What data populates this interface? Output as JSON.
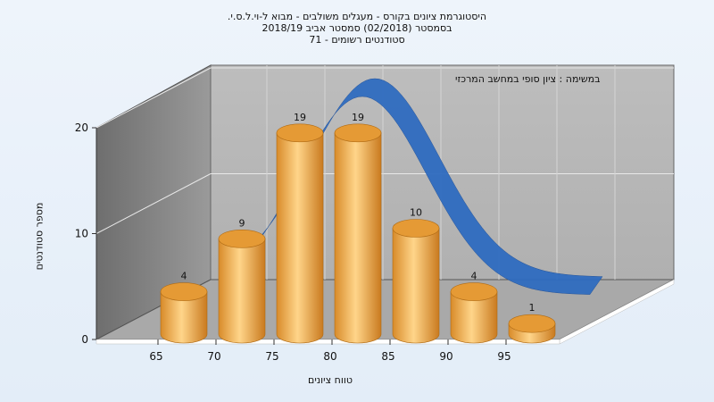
{
  "header": {
    "title_lines": [
      "היסטוגרמת ציונים בקורס - מעגלים משולבים - מבוא ל-וי.ל.ס.י.",
      "בסמסטר (02/2018) סמסטר אביב 2018/19",
      "סטודנטים רשומים - 71"
    ]
  },
  "chart_data": {
    "type": "bar",
    "title": "היסטוגרמת ציונים בקורס - מעגלים משולבים - מבוא ל-וי.ל.ס.י.",
    "subtitle": "בסמסטר (02/2018) סמסטר אביב 2018/19 — סטודנטים רשומים - 71",
    "xlabel": "טווח ציונים",
    "ylabel": "מספר סטודנטים",
    "x_ticks": [
      65,
      70,
      75,
      80,
      85,
      90,
      95
    ],
    "y_ticks": [
      0,
      10,
      20
    ],
    "ylim": [
      0,
      20
    ],
    "categories": [
      "65",
      "70",
      "75",
      "80",
      "85",
      "90",
      "95"
    ],
    "values": [
      4,
      9,
      19,
      19,
      10,
      4,
      1
    ],
    "data_labels": [
      "4",
      "9",
      "19",
      "19",
      "10",
      "4",
      "1"
    ],
    "curve_label": "במשימה : ציון סופי במחשב המרכזי",
    "grid": true,
    "bar_color": "#f0b45a",
    "curve_color": "#2f6cc0"
  }
}
